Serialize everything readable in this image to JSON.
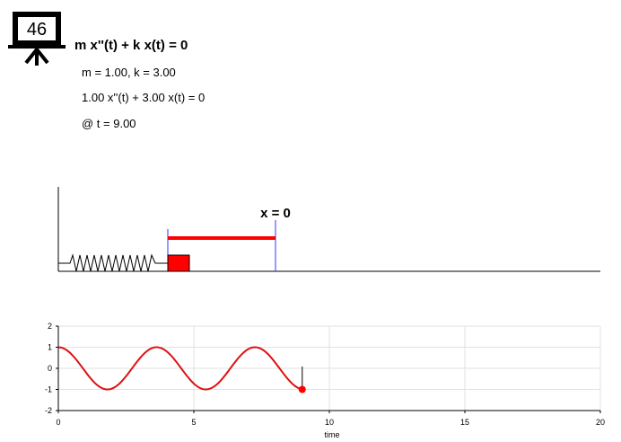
{
  "slide": {
    "number": "46",
    "icon": "presentation-board-icon"
  },
  "equation": {
    "title": "m x''(t) + k x(t) = 0",
    "params": "m = 1.00, k = 3.00",
    "substituted": "1.00 x''(t) + 3.00 x(t) = 0",
    "time": "@ t = 9.00"
  },
  "simulation": {
    "equilibrium_label": "x = 0",
    "mass_color": "#ff0000",
    "displacement_color": "#ff0000",
    "marker_color": "#0000ff",
    "spring_icon": "spring-icon"
  },
  "chart_data": {
    "type": "line",
    "xlabel": "time",
    "ylabel": "",
    "xlim": [
      0,
      20
    ],
    "ylim": [
      -2,
      2
    ],
    "xticks": [
      "0",
      "5",
      "10",
      "15",
      "20"
    ],
    "yticks": [
      "2",
      "1",
      "0",
      "-1",
      "-2"
    ],
    "grid": true,
    "series": [
      {
        "color": "#dd1111",
        "function": "cos(sqrt(3) t)",
        "x": [
          0,
          0.5,
          1,
          1.5,
          1.81,
          2,
          2.5,
          3,
          3.63,
          4,
          4.5,
          5,
          5.44,
          6,
          6.5,
          7,
          7.26,
          8,
          8.5,
          9
        ],
        "y": [
          1,
          0.65,
          -0.16,
          -0.86,
          -1,
          -0.95,
          -0.36,
          0.48,
          1,
          0.78,
          0.03,
          -0.76,
          -1,
          -0.5,
          0.26,
          0.86,
          1,
          0.26,
          -0.49,
          -1
        ]
      }
    ],
    "current_point": {
      "t": 9,
      "x": -1,
      "color": "#ff0000"
    }
  }
}
